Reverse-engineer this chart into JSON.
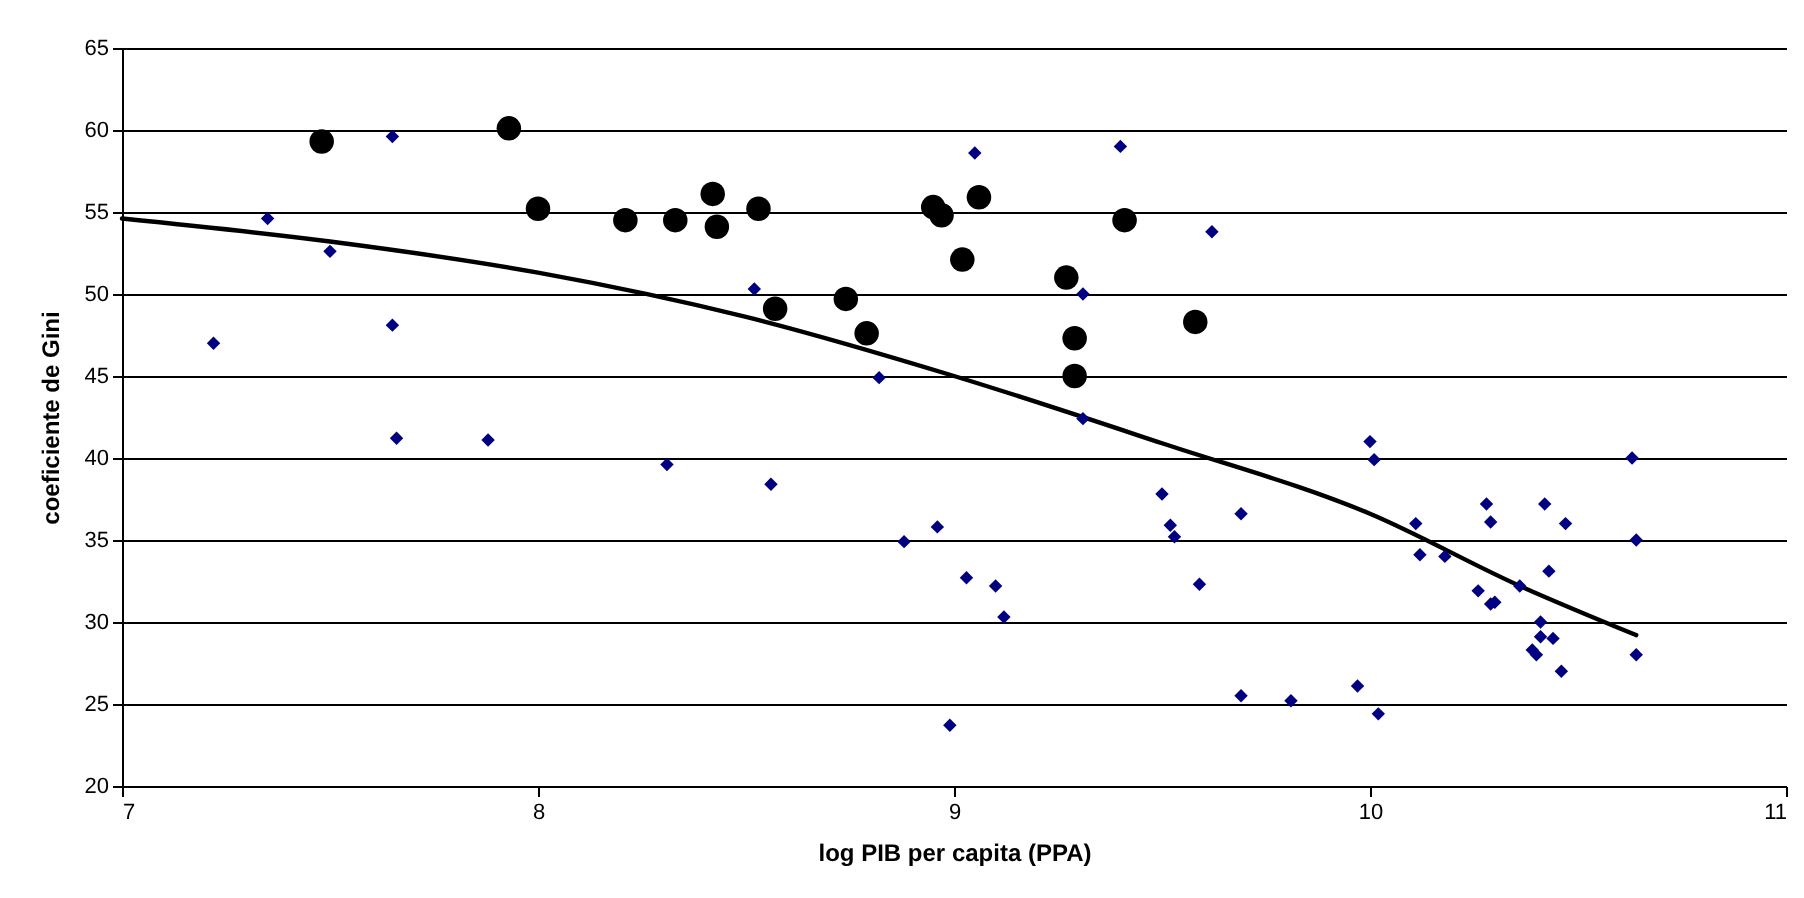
{
  "chart_data": {
    "type": "scatter",
    "xlabel": "log PIB per capita (PPA)",
    "ylabel": "coeficiente de Gini",
    "xlim": [
      7,
      11
    ],
    "xticks": [
      7,
      8,
      9,
      10,
      11
    ],
    "ylim": [
      20,
      65
    ],
    "yticks": [
      20,
      25,
      30,
      35,
      40,
      45,
      50,
      55,
      60,
      65
    ],
    "grid": "y",
    "series": [
      {
        "color": "#000080",
        "marker": "diamond",
        "x": [
          7.22,
          7.35,
          7.5,
          7.65,
          7.65,
          7.66,
          7.88,
          8.31,
          8.52,
          8.56,
          8.82,
          8.88,
          8.96,
          8.99,
          9.03,
          9.05,
          9.1,
          9.12,
          9.31,
          9.4,
          9.31,
          9.5,
          9.52,
          9.53,
          9.59,
          9.62,
          9.69,
          9.69,
          9.81,
          9.97,
          10.0,
          10.01,
          10.02,
          10.11,
          10.12,
          10.18,
          10.26,
          10.28,
          10.29,
          10.29,
          10.3,
          10.36,
          10.39,
          10.4,
          10.41,
          10.41,
          10.42,
          10.43,
          10.44,
          10.46,
          10.47,
          10.63,
          10.64,
          10.64
        ],
        "values": [
          47.0,
          54.6,
          52.6,
          59.6,
          48.1,
          41.2,
          41.1,
          39.6,
          50.3,
          38.4,
          44.9,
          34.9,
          35.8,
          23.7,
          32.7,
          58.6,
          32.2,
          30.3,
          42.4,
          59.0,
          50.0,
          37.8,
          35.9,
          35.2,
          32.3,
          53.8,
          36.6,
          25.5,
          25.2,
          26.1,
          41.0,
          39.9,
          24.4,
          36.0,
          34.1,
          34.0,
          31.9,
          37.2,
          36.1,
          31.1,
          31.2,
          32.2,
          28.3,
          28.0,
          29.1,
          30.0,
          37.2,
          33.1,
          29.0,
          27.0,
          36.0,
          40.0,
          35.0,
          28.0
        ]
      },
      {
        "color": "#000000",
        "marker": "circle",
        "x": [
          7.48,
          7.93,
          8.0,
          8.21,
          8.33,
          8.42,
          8.43,
          8.53,
          8.57,
          8.74,
          8.79,
          8.95,
          8.97,
          9.02,
          9.06,
          9.27,
          9.29,
          9.29,
          9.41,
          9.58
        ],
        "values": [
          59.3,
          60.1,
          55.2,
          54.5,
          54.5,
          56.1,
          54.1,
          55.2,
          49.1,
          49.7,
          47.6,
          55.3,
          54.8,
          52.1,
          55.9,
          51.0,
          47.3,
          45.0,
          54.5,
          48.3
        ]
      },
      {
        "type": "line",
        "color": "#000000",
        "marker": "none",
        "line_style": "solid",
        "x": [
          7,
          7.5,
          8,
          8.5,
          9,
          9.5,
          10,
          10.36,
          10.64
        ],
        "values": [
          54.6,
          53.2,
          51.3,
          48.6,
          45.0,
          40.9,
          36.6,
          32.2,
          29.2
        ]
      }
    ]
  }
}
